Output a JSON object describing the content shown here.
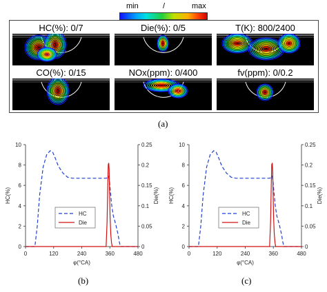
{
  "colorbar": {
    "min_label": "min",
    "mid_label": "/",
    "max_label": "max"
  },
  "panels": [
    {
      "label": "HC(%):  0/7"
    },
    {
      "label": "Die(%): 0/5"
    },
    {
      "label": "T(K): 800/2400"
    },
    {
      "label": "CO(%): 0/15"
    },
    {
      "label": "NOx(ppm): 0/400"
    },
    {
      "label": "fv(ppm): 0/0.2"
    }
  ],
  "figure_labels": {
    "a": "(a)",
    "b": "(b)",
    "c": "(c)"
  },
  "chart_data": [
    {
      "type": "line",
      "xlabel": "φ(°CA)",
      "ylabel": "HC(%)",
      "y2label": "Die(%)",
      "xlim": [
        0,
        480
      ],
      "ylim": [
        0,
        10
      ],
      "y2lim": [
        0,
        0.25
      ],
      "xticks": [
        "0",
        "120",
        "240",
        "360",
        "480"
      ],
      "yticks": [
        "0",
        "2",
        "4",
        "6",
        "8",
        "10"
      ],
      "y2ticks": [
        "0",
        "0.05",
        "0.1",
        "0.15",
        "0.2",
        "0.25"
      ],
      "legend_position": "lower-left",
      "series": [
        {
          "name": "HC",
          "axis": "left",
          "color": "#1f3fd0",
          "style": "dashed",
          "x": [
            0,
            40,
            50,
            60,
            75,
            90,
            105,
            115,
            125,
            140,
            160,
            180,
            200,
            230,
            260,
            300,
            330,
            345,
            350,
            355,
            358,
            362,
            368,
            375,
            385,
            395,
            400,
            405,
            480
          ],
          "y": [
            0,
            0,
            2.0,
            5.0,
            7.8,
            9.0,
            9.4,
            9.3,
            8.8,
            7.9,
            7.2,
            6.8,
            6.7,
            6.7,
            6.7,
            6.7,
            6.7,
            6.7,
            6.8,
            6.9,
            6.5,
            5.5,
            4.0,
            3.0,
            2.2,
            1.2,
            0.5,
            0,
            0
          ]
        },
        {
          "name": "Die",
          "axis": "right",
          "color": "#d01010",
          "style": "solid",
          "x": [
            0,
            344,
            348,
            351,
            353,
            355,
            357,
            359,
            361,
            364,
            367,
            370,
            480
          ],
          "y": [
            0,
            0,
            0.06,
            0.15,
            0.2,
            0.205,
            0.19,
            0.13,
            0.07,
            0.03,
            0.01,
            0,
            0
          ]
        }
      ]
    },
    {
      "type": "line",
      "xlabel": "φ(°CA)",
      "ylabel": "HC(%)",
      "y2label": "Die(%)",
      "xlim": [
        0,
        480
      ],
      "ylim": [
        0,
        10
      ],
      "y2lim": [
        0,
        0.25
      ],
      "xticks": [
        "0",
        "120",
        "240",
        "360",
        "480"
      ],
      "yticks": [
        "0",
        "2",
        "4",
        "6",
        "8",
        "10"
      ],
      "y2ticks": [
        "0",
        "0.05",
        "0.1",
        "0.15",
        "0.2",
        "0.25"
      ],
      "legend_position": "lower-left",
      "series": [
        {
          "name": "HC",
          "axis": "left",
          "color": "#1f3fd0",
          "style": "dashed",
          "x": [
            0,
            40,
            50,
            60,
            75,
            90,
            105,
            115,
            125,
            140,
            160,
            180,
            200,
            230,
            260,
            300,
            330,
            345,
            350,
            355,
            358,
            362,
            368,
            375,
            385,
            395,
            400,
            405,
            480
          ],
          "y": [
            0,
            0,
            2.0,
            5.0,
            7.8,
            9.0,
            9.4,
            9.3,
            8.8,
            7.9,
            7.2,
            6.8,
            6.7,
            6.7,
            6.7,
            6.7,
            6.7,
            6.7,
            6.8,
            6.9,
            6.5,
            5.5,
            4.0,
            3.0,
            2.2,
            1.2,
            0.5,
            0,
            0
          ]
        },
        {
          "name": "Die",
          "axis": "right",
          "color": "#d01010",
          "style": "solid",
          "x": [
            0,
            344,
            348,
            351,
            353,
            355,
            357,
            359,
            361,
            364,
            367,
            370,
            480
          ],
          "y": [
            0,
            0,
            0.06,
            0.15,
            0.2,
            0.205,
            0.19,
            0.13,
            0.07,
            0.03,
            0.01,
            0,
            0
          ]
        }
      ]
    }
  ]
}
